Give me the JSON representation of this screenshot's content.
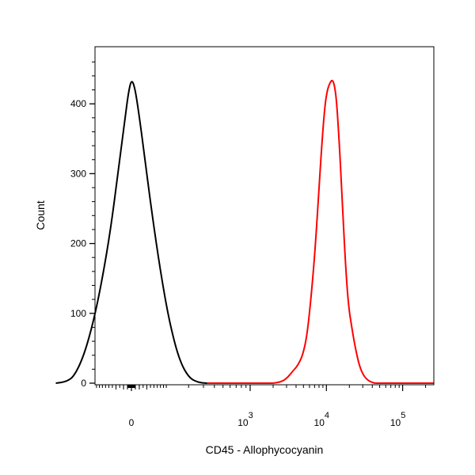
{
  "chart_data": {
    "type": "line",
    "title": "",
    "xlabel": "CD45 - Allophycocyanin",
    "ylabel": "Count",
    "x_scale": "biexponential",
    "x_major_ticks": [
      {
        "value": 0,
        "label": "0"
      },
      {
        "value": 1000,
        "label_base": "10",
        "label_exp": "3"
      },
      {
        "value": 10000,
        "label_base": "10",
        "label_exp": "4"
      },
      {
        "value": 100000,
        "label_base": "10",
        "label_exp": "5"
      }
    ],
    "y_ticks": [
      0,
      100,
      200,
      300,
      400
    ],
    "ylim": [
      0,
      475
    ],
    "grid": false,
    "legend": "none",
    "series": [
      {
        "color": "#000000",
        "points": [
          [
            -330,
            0
          ],
          [
            -250,
            2
          ],
          [
            -200,
            10
          ],
          [
            -150,
            40
          ],
          [
            -110,
            90
          ],
          [
            -80,
            150
          ],
          [
            -55,
            220
          ],
          [
            -35,
            300
          ],
          [
            -18,
            370
          ],
          [
            -8,
            415
          ],
          [
            0,
            435
          ],
          [
            8,
            425
          ],
          [
            18,
            390
          ],
          [
            35,
            320
          ],
          [
            55,
            240
          ],
          [
            80,
            160
          ],
          [
            110,
            90
          ],
          [
            150,
            35
          ],
          [
            200,
            8
          ],
          [
            260,
            1
          ],
          [
            330,
            0
          ]
        ]
      },
      {
        "color": "#ff0000",
        "points": [
          [
            2000,
            0
          ],
          [
            2600,
            2
          ],
          [
            3100,
            8
          ],
          [
            3600,
            17
          ],
          [
            4200,
            25
          ],
          [
            4900,
            40
          ],
          [
            5600,
            70
          ],
          [
            6400,
            130
          ],
          [
            7200,
            200
          ],
          [
            8000,
            280
          ],
          [
            8800,
            350
          ],
          [
            9600,
            400
          ],
          [
            10300,
            420
          ],
          [
            11100,
            430
          ],
          [
            12000,
            435
          ],
          [
            12900,
            425
          ],
          [
            13800,
            395
          ],
          [
            15000,
            330
          ],
          [
            16300,
            250
          ],
          [
            17800,
            170
          ],
          [
            19500,
            110
          ],
          [
            21500,
            80
          ],
          [
            24000,
            50
          ],
          [
            27000,
            25
          ],
          [
            31000,
            10
          ],
          [
            36000,
            3
          ],
          [
            43000,
            0
          ]
        ]
      }
    ]
  }
}
